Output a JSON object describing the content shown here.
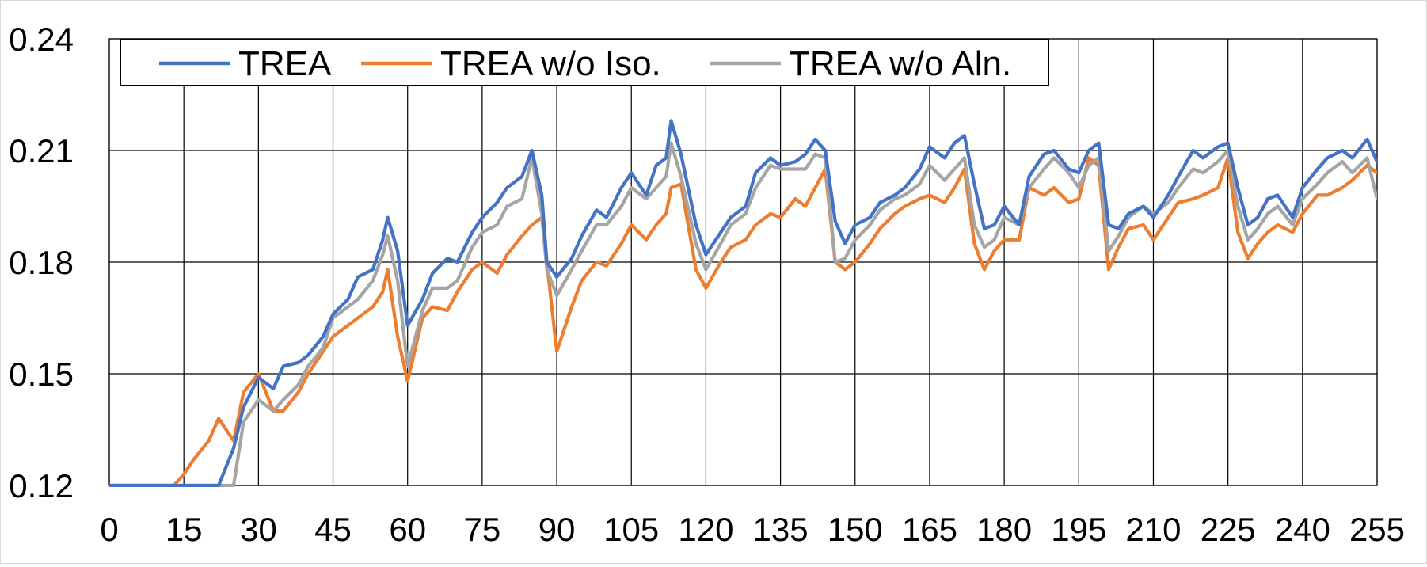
{
  "chart_data": {
    "type": "line",
    "title": "",
    "xlabel": "",
    "ylabel": "",
    "xlim": [
      0,
      255
    ],
    "ylim": [
      0.12,
      0.24
    ],
    "x_ticks": [
      "0",
      "15",
      "30",
      "45",
      "60",
      "75",
      "90",
      "105",
      "120",
      "135",
      "150",
      "165",
      "180",
      "195",
      "210",
      "225",
      "240",
      "255"
    ],
    "y_ticks": [
      "0.24",
      "0.21",
      "0.18",
      "0.15",
      "0.12"
    ],
    "grid": true,
    "legend_position": "top-left",
    "x": [
      0,
      5,
      10,
      13,
      15,
      17,
      20,
      22,
      25,
      27,
      30,
      33,
      35,
      38,
      40,
      43,
      45,
      48,
      50,
      53,
      55,
      56,
      58,
      60,
      63,
      65,
      68,
      70,
      73,
      75,
      78,
      80,
      83,
      85,
      87,
      88,
      90,
      93,
      95,
      98,
      100,
      103,
      105,
      108,
      110,
      112,
      113,
      115,
      118,
      120,
      123,
      125,
      128,
      130,
      133,
      135,
      138,
      140,
      142,
      144,
      146,
      148,
      150,
      153,
      155,
      158,
      160,
      163,
      165,
      168,
      170,
      172,
      174,
      176,
      178,
      180,
      183,
      185,
      188,
      190,
      193,
      195,
      197,
      199,
      201,
      203,
      205,
      208,
      210,
      213,
      215,
      218,
      220,
      223,
      225,
      227,
      229,
      231,
      233,
      235,
      238,
      240,
      243,
      245,
      248,
      250,
      253,
      255
    ],
    "series": [
      {
        "name": "TREA",
        "color": "#4472c4",
        "values": [
          0.12,
          0.12,
          0.12,
          0.12,
          0.12,
          0.12,
          0.12,
          0.12,
          0.13,
          0.141,
          0.149,
          0.146,
          0.152,
          0.153,
          0.155,
          0.16,
          0.166,
          0.17,
          0.176,
          0.178,
          0.186,
          0.192,
          0.183,
          0.163,
          0.17,
          0.177,
          0.181,
          0.18,
          0.188,
          0.192,
          0.196,
          0.2,
          0.203,
          0.21,
          0.198,
          0.18,
          0.176,
          0.181,
          0.187,
          0.194,
          0.192,
          0.2,
          0.204,
          0.198,
          0.206,
          0.208,
          0.218,
          0.209,
          0.19,
          0.182,
          0.188,
          0.192,
          0.195,
          0.204,
          0.208,
          0.206,
          0.207,
          0.209,
          0.213,
          0.21,
          0.191,
          0.185,
          0.19,
          0.192,
          0.196,
          0.198,
          0.2,
          0.205,
          0.211,
          0.208,
          0.212,
          0.214,
          0.201,
          0.189,
          0.19,
          0.195,
          0.19,
          0.203,
          0.209,
          0.21,
          0.205,
          0.204,
          0.21,
          0.212,
          0.19,
          0.189,
          0.193,
          0.195,
          0.192,
          0.198,
          0.203,
          0.21,
          0.208,
          0.211,
          0.212,
          0.2,
          0.19,
          0.192,
          0.197,
          0.198,
          0.192,
          0.2,
          0.205,
          0.208,
          0.21,
          0.208,
          0.213,
          0.207
        ]
      },
      {
        "name": "TREA w/o Iso.",
        "color": "#ed7d31",
        "values": [
          0.12,
          0.12,
          0.12,
          0.12,
          0.123,
          0.127,
          0.132,
          0.138,
          0.132,
          0.145,
          0.15,
          0.14,
          0.14,
          0.145,
          0.15,
          0.156,
          0.16,
          0.163,
          0.165,
          0.168,
          0.172,
          0.178,
          0.16,
          0.148,
          0.165,
          0.168,
          0.167,
          0.172,
          0.178,
          0.18,
          0.177,
          0.182,
          0.187,
          0.19,
          0.192,
          0.18,
          0.156,
          0.168,
          0.175,
          0.18,
          0.179,
          0.185,
          0.19,
          0.186,
          0.19,
          0.193,
          0.2,
          0.201,
          0.178,
          0.173,
          0.18,
          0.184,
          0.186,
          0.19,
          0.193,
          0.192,
          0.197,
          0.195,
          0.2,
          0.205,
          0.18,
          0.178,
          0.18,
          0.185,
          0.189,
          0.193,
          0.195,
          0.197,
          0.198,
          0.196,
          0.2,
          0.205,
          0.185,
          0.178,
          0.183,
          0.186,
          0.186,
          0.2,
          0.198,
          0.2,
          0.196,
          0.197,
          0.208,
          0.206,
          0.178,
          0.184,
          0.189,
          0.19,
          0.186,
          0.192,
          0.196,
          0.197,
          0.198,
          0.2,
          0.208,
          0.188,
          0.181,
          0.185,
          0.188,
          0.19,
          0.188,
          0.193,
          0.198,
          0.198,
          0.2,
          0.202,
          0.206,
          0.204
        ]
      },
      {
        "name": "TREA w/o Aln.",
        "color": "#a5a5a5",
        "values": [
          0.12,
          0.12,
          0.12,
          0.12,
          0.12,
          0.12,
          0.12,
          0.12,
          0.12,
          0.137,
          0.143,
          0.14,
          0.143,
          0.147,
          0.152,
          0.157,
          0.165,
          0.168,
          0.17,
          0.175,
          0.182,
          0.187,
          0.175,
          0.152,
          0.167,
          0.173,
          0.173,
          0.175,
          0.184,
          0.188,
          0.19,
          0.195,
          0.197,
          0.208,
          0.193,
          0.178,
          0.171,
          0.178,
          0.183,
          0.19,
          0.19,
          0.195,
          0.2,
          0.197,
          0.2,
          0.203,
          0.212,
          0.203,
          0.185,
          0.178,
          0.185,
          0.19,
          0.193,
          0.2,
          0.206,
          0.205,
          0.205,
          0.205,
          0.209,
          0.208,
          0.18,
          0.181,
          0.186,
          0.19,
          0.194,
          0.197,
          0.198,
          0.201,
          0.206,
          0.202,
          0.205,
          0.208,
          0.19,
          0.184,
          0.186,
          0.192,
          0.19,
          0.2,
          0.205,
          0.208,
          0.204,
          0.2,
          0.206,
          0.208,
          0.183,
          0.187,
          0.192,
          0.195,
          0.193,
          0.196,
          0.2,
          0.205,
          0.204,
          0.207,
          0.21,
          0.195,
          0.186,
          0.189,
          0.193,
          0.195,
          0.19,
          0.197,
          0.201,
          0.204,
          0.207,
          0.204,
          0.208,
          0.197
        ]
      }
    ]
  }
}
